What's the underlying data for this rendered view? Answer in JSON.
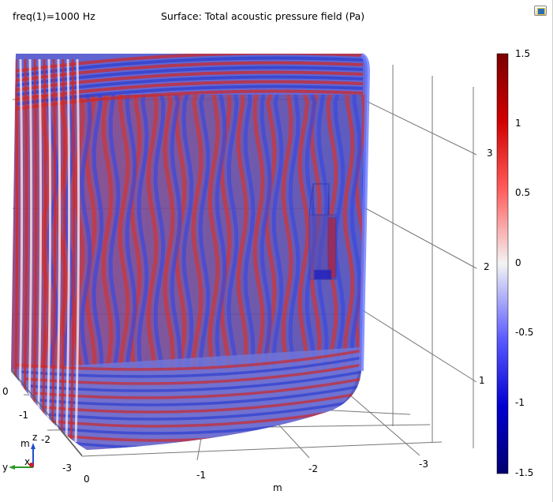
{
  "plot": {
    "freq_label": "freq(1)=1000 Hz",
    "title": "Surface: Total acoustic pressure field (Pa)"
  },
  "colorbar": {
    "range": [
      -1.5,
      1.5
    ],
    "colormap": "wave (blue-white-red)",
    "ticks": [
      "1.5",
      "1",
      "0.5",
      "0",
      "-0.5",
      "-1",
      "-1.5"
    ]
  },
  "axes": {
    "z_ticks": [
      "1",
      "2",
      "3"
    ],
    "y_ticks": [
      "0",
      "-1",
      "-2",
      "-3"
    ],
    "x_ticks": [
      "0",
      "-1",
      "-2",
      "-3"
    ],
    "unit_x": "m",
    "unit_y": "m"
  },
  "triad": {
    "z": "z",
    "y": "y",
    "x": "x"
  },
  "colors": {
    "red": "#cc2a2a",
    "blue": "#2e3fcf",
    "background": "#ffffff"
  },
  "icons": {
    "image_toggle": "image-icon"
  }
}
